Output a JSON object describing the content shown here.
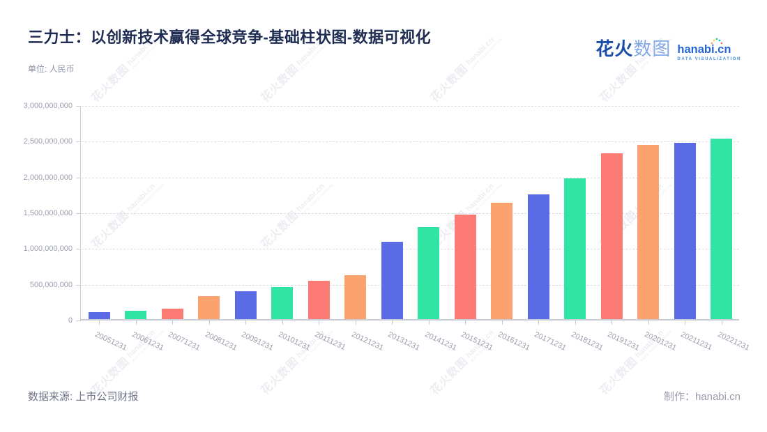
{
  "header": {
    "title": "三力士：以创新技术赢得全球竞争-基础柱状图-数据可视化",
    "unit_label": "单位: 人民币"
  },
  "logo": {
    "cn_primary": "花火",
    "cn_secondary": "数图",
    "domain": "hanabi.cn",
    "tagline": "DATA VISUALIZATION"
  },
  "watermark": {
    "cn": "花火数图",
    "domain": "hanabi.cn",
    "tagline": "DATA VISUALIZATION"
  },
  "footer": {
    "source": "数据来源: 上市公司财报",
    "credit": "制作：hanabi.cn"
  },
  "chart_data": {
    "type": "bar",
    "title": "三力士：以创新技术赢得全球竞争-基础柱状图-数据可视化",
    "ylabel": "人民币",
    "xlabel": "",
    "categories": [
      "20051231",
      "20061231",
      "20071231",
      "20081231",
      "20091231",
      "20101231",
      "20111231",
      "20121231",
      "20131231",
      "20141231",
      "20151231",
      "20161231",
      "20171231",
      "20181231",
      "20191231",
      "20201231",
      "20211231",
      "20221231"
    ],
    "values": [
      95000000,
      115000000,
      145000000,
      325000000,
      390000000,
      450000000,
      540000000,
      615000000,
      1080000000,
      1285000000,
      1460000000,
      1625000000,
      1740000000,
      1965000000,
      2320000000,
      2440000000,
      2460000000,
      2525000000
    ],
    "ylim": [
      0,
      3000000000
    ],
    "ytick_step": 500000000,
    "bar_palette": [
      "#5b6be6",
      "#30e5a4",
      "#fc7b74",
      "#fca26f"
    ],
    "grid": "horizontal-dashed",
    "legend": "none",
    "x_label_rotation_deg": 25
  }
}
